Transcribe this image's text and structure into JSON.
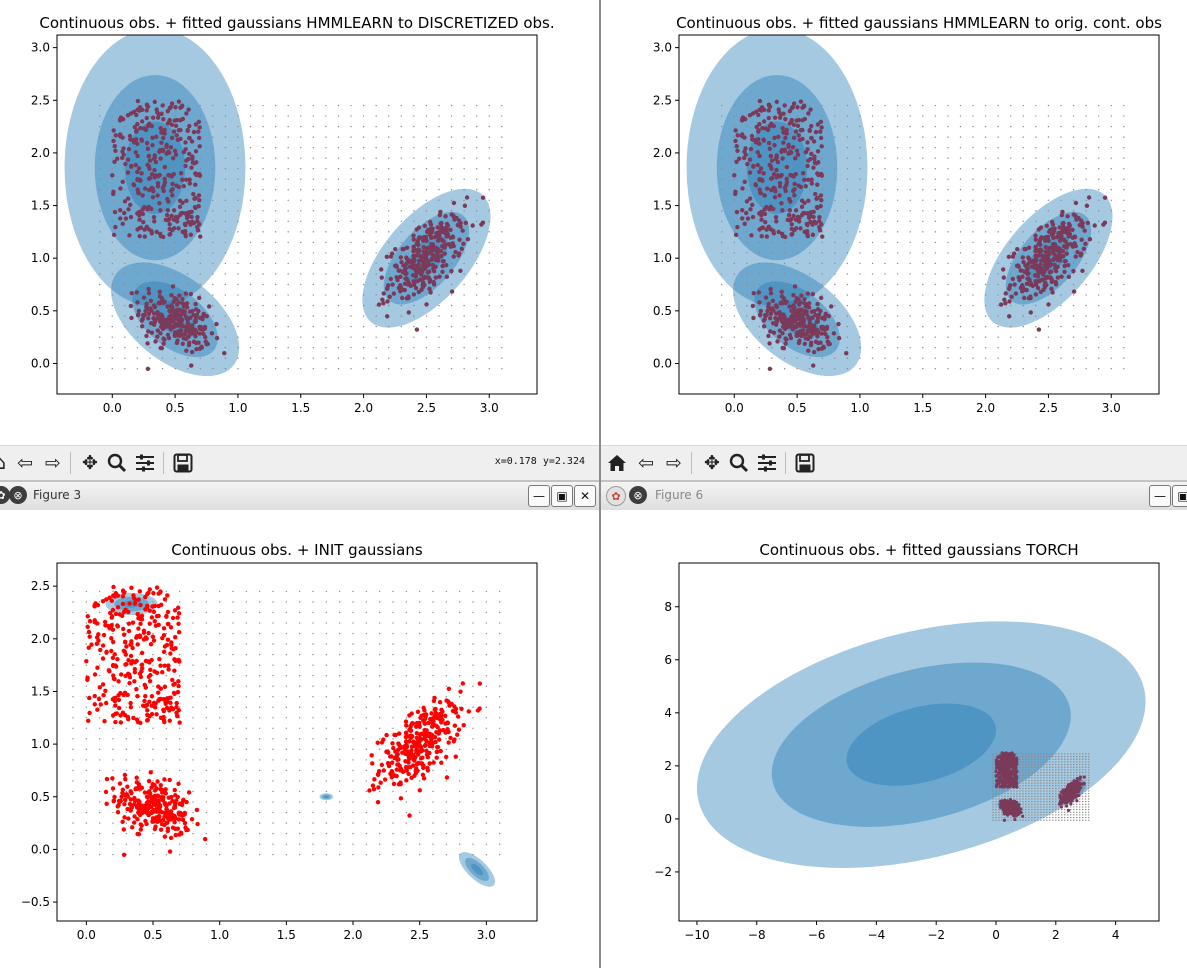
{
  "windows": {
    "figure3": {
      "title": "Figure 3"
    },
    "figure6": {
      "title": "Figure 6"
    }
  },
  "toolbar": {
    "coordinates": "x=0.178 y=2.324",
    "icons": [
      "home-icon",
      "back-arrow-icon",
      "forward-arrow-icon",
      "pan-icon",
      "zoom-icon",
      "configure-icon",
      "save-icon"
    ]
  },
  "colors": {
    "ellipse": "#1f77b4",
    "points_fitted": "#7b3a5a",
    "points_init": "#ff0000",
    "grid_dots": "#888888"
  },
  "chart_data": [
    {
      "id": "discretized",
      "type": "scatter",
      "title": "Continuous obs. + fitted gaussians HMMLEARN to DISCRETIZED  obs.",
      "xlim": [
        -0.44,
        3.38
      ],
      "ylim": [
        -0.29,
        3.12
      ],
      "xticks": [
        "0.0",
        "0.5",
        "1.0",
        "1.5",
        "2.0",
        "2.5",
        "3.0"
      ],
      "yticks": [
        "0.0",
        "0.5",
        "1.0",
        "1.5",
        "2.0",
        "2.5",
        "3.0"
      ],
      "grid_dots": {
        "x0": -0.1,
        "x1": 3.1,
        "dx": 0.1,
        "y0": -0.05,
        "y1": 2.5,
        "dy": 0.1
      },
      "point_color": "points_fitted",
      "clusters": [
        {
          "kind": "uniform",
          "x": [
            0.0,
            0.7
          ],
          "y": [
            1.2,
            2.5
          ],
          "n": 330
        },
        {
          "kind": "normal",
          "cx": 0.5,
          "cy": 0.4,
          "sx": 0.14,
          "sy": 0.14,
          "rho": -0.4,
          "n": 260
        },
        {
          "kind": "normal",
          "cx": 2.5,
          "cy": 1.0,
          "sx": 0.15,
          "sy": 0.2,
          "rho": 0.6,
          "n": 300
        }
      ],
      "gaussians": [
        {
          "cx": 0.34,
          "cy": 1.86,
          "sx": 0.24,
          "sy": 0.44,
          "rho": 0.0
        },
        {
          "cx": 0.5,
          "cy": 0.42,
          "sx": 0.17,
          "sy": 0.18,
          "rho": -0.5
        },
        {
          "cx": 2.5,
          "cy": 1.0,
          "sx": 0.17,
          "sy": 0.22,
          "rho": 0.6
        }
      ]
    },
    {
      "id": "original",
      "type": "scatter",
      "title": "Continuous obs. + fitted gaussians HMMLEARN to orig. cont. obs",
      "xlim": [
        -0.44,
        3.38
      ],
      "ylim": [
        -0.29,
        3.12
      ],
      "xticks": [
        "0.0",
        "0.5",
        "1.0",
        "1.5",
        "2.0",
        "2.5",
        "3.0"
      ],
      "yticks": [
        "0.0",
        "0.5",
        "1.0",
        "1.5",
        "2.0",
        "2.5",
        "3.0"
      ],
      "grid_dots": {
        "x0": -0.1,
        "x1": 3.1,
        "dx": 0.1,
        "y0": -0.05,
        "y1": 2.5,
        "dy": 0.1
      },
      "point_color": "points_fitted",
      "clusters": [
        {
          "kind": "uniform",
          "x": [
            0.0,
            0.7
          ],
          "y": [
            1.2,
            2.5
          ],
          "n": 330
        },
        {
          "kind": "normal",
          "cx": 0.5,
          "cy": 0.4,
          "sx": 0.14,
          "sy": 0.14,
          "rho": -0.4,
          "n": 260
        },
        {
          "kind": "normal",
          "cx": 2.5,
          "cy": 1.0,
          "sx": 0.15,
          "sy": 0.2,
          "rho": 0.6,
          "n": 300
        }
      ],
      "gaussians": [
        {
          "cx": 0.34,
          "cy": 1.86,
          "sx": 0.24,
          "sy": 0.44,
          "rho": 0.0
        },
        {
          "cx": 0.5,
          "cy": 0.42,
          "sx": 0.17,
          "sy": 0.18,
          "rho": -0.5
        },
        {
          "cx": 2.5,
          "cy": 1.0,
          "sx": 0.17,
          "sy": 0.22,
          "rho": 0.6
        }
      ]
    },
    {
      "id": "init",
      "type": "scatter",
      "title": "Continuous obs. + INIT gaussians",
      "xlim": [
        -0.22,
        3.38
      ],
      "ylim": [
        -0.68,
        2.72
      ],
      "xticks": [
        "0.0",
        "0.5",
        "1.0",
        "1.5",
        "2.0",
        "2.5",
        "3.0"
      ],
      "yticks": [
        "−0.5",
        "0.0",
        "0.5",
        "1.0",
        "1.5",
        "2.0",
        "2.5"
      ],
      "grid_dots": {
        "x0": -0.1,
        "x1": 3.1,
        "dx": 0.1,
        "y0": -0.05,
        "y1": 2.5,
        "dy": 0.1
      },
      "point_color": "points_init",
      "clusters": [
        {
          "kind": "uniform",
          "x": [
            0.0,
            0.7
          ],
          "y": [
            1.2,
            2.5
          ],
          "n": 330
        },
        {
          "kind": "normal",
          "cx": 0.5,
          "cy": 0.4,
          "sx": 0.14,
          "sy": 0.14,
          "rho": -0.4,
          "n": 260
        },
        {
          "kind": "normal",
          "cx": 2.5,
          "cy": 1.0,
          "sx": 0.15,
          "sy": 0.2,
          "rho": 0.6,
          "n": 300
        }
      ],
      "gaussians": [
        {
          "cx": 0.34,
          "cy": 2.33,
          "sx": 0.065,
          "sy": 0.035,
          "rho": 0.0
        },
        {
          "cx": 1.8,
          "cy": 0.5,
          "sx": 0.017,
          "sy": 0.011,
          "rho": 0.0
        },
        {
          "cx": 2.93,
          "cy": -0.19,
          "sx": 0.045,
          "sy": 0.055,
          "rho": -0.7
        }
      ]
    },
    {
      "id": "torch",
      "type": "scatter",
      "title": "Continuous obs. + fitted gaussians TORCH",
      "xlim": [
        -10.6,
        5.45
      ],
      "ylim": [
        -3.85,
        9.65
      ],
      "xticks": [
        "−10",
        "−8",
        "−6",
        "−4",
        "−2",
        "0",
        "2",
        "4"
      ],
      "yticks": [
        "−2",
        "0",
        "2",
        "4",
        "6",
        "8"
      ],
      "grid_dots": {
        "x0": -0.1,
        "x1": 3.1,
        "dx": 0.1,
        "y0": -0.05,
        "y1": 2.5,
        "dy": 0.1
      },
      "point_color": "points_fitted",
      "clusters": [
        {
          "kind": "uniform",
          "x": [
            0.0,
            0.7
          ],
          "y": [
            1.2,
            2.5
          ],
          "n": 330
        },
        {
          "kind": "normal",
          "cx": 0.5,
          "cy": 0.4,
          "sx": 0.14,
          "sy": 0.14,
          "rho": -0.4,
          "n": 260
        },
        {
          "kind": "normal",
          "cx": 2.5,
          "cy": 1.0,
          "sx": 0.15,
          "sy": 0.2,
          "rho": 0.6,
          "n": 300
        }
      ],
      "gaussians": [
        {
          "cx": -2.5,
          "cy": 2.8,
          "sx": 2.5,
          "sy": 1.55,
          "rho": 0.35
        },
        {
          "cx": 0.35,
          "cy": 0.45,
          "sx": 0.1,
          "sy": 0.09,
          "rho": -0.4
        },
        {
          "cx": 2.55,
          "cy": 1.0,
          "sx": 0.15,
          "sy": 0.16,
          "rho": 0.6
        }
      ]
    }
  ]
}
